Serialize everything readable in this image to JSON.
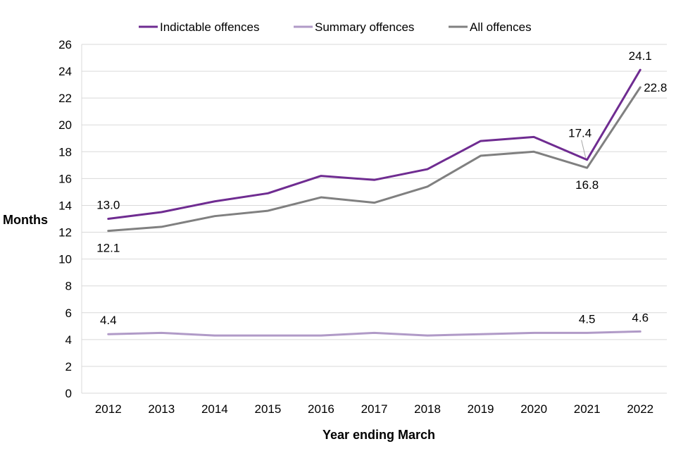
{
  "chart_data": {
    "type": "line",
    "title": "",
    "xlabel": "Year ending March",
    "ylabel": "Months",
    "ylim": [
      0,
      26
    ],
    "ytick_step": 2,
    "yticks": [
      "0",
      "2",
      "4",
      "6",
      "8",
      "10",
      "12",
      "14",
      "16",
      "18",
      "20",
      "22",
      "24",
      "26"
    ],
    "grid": true,
    "legend_position": "top",
    "categories": [
      "2012",
      "2013",
      "2014",
      "2015",
      "2016",
      "2017",
      "2018",
      "2019",
      "2020",
      "2021",
      "2022"
    ],
    "series": [
      {
        "name": "Indictable offences",
        "color": "#6f2c91",
        "values": [
          13.0,
          13.5,
          14.3,
          14.9,
          16.2,
          15.9,
          16.7,
          18.8,
          19.1,
          17.4,
          24.1
        ],
        "labels": [
          {
            "index": 0,
            "text": "13.0",
            "pos": "above"
          },
          {
            "index": 9,
            "text": "17.4",
            "pos": "above-left"
          },
          {
            "index": 10,
            "text": "24.1",
            "pos": "above"
          }
        ]
      },
      {
        "name": "Summary offences",
        "color": "#b09ac7",
        "values": [
          4.4,
          4.5,
          4.3,
          4.3,
          4.3,
          4.5,
          4.3,
          4.4,
          4.5,
          4.5,
          4.6
        ],
        "labels": [
          {
            "index": 0,
            "text": "4.4",
            "pos": "above"
          },
          {
            "index": 9,
            "text": "4.5",
            "pos": "above"
          },
          {
            "index": 10,
            "text": "4.6",
            "pos": "above"
          }
        ]
      },
      {
        "name": "All offences",
        "color": "#808080",
        "values": [
          12.1,
          12.4,
          13.2,
          13.6,
          14.6,
          14.2,
          15.4,
          17.7,
          18.0,
          16.8,
          22.8
        ],
        "labels": [
          {
            "index": 0,
            "text": "12.1",
            "pos": "below"
          },
          {
            "index": 9,
            "text": "16.8",
            "pos": "below"
          },
          {
            "index": 10,
            "text": "22.8",
            "pos": "right"
          }
        ]
      }
    ]
  },
  "colors": {
    "grid": "#d9d9d9",
    "text": "#000000"
  }
}
